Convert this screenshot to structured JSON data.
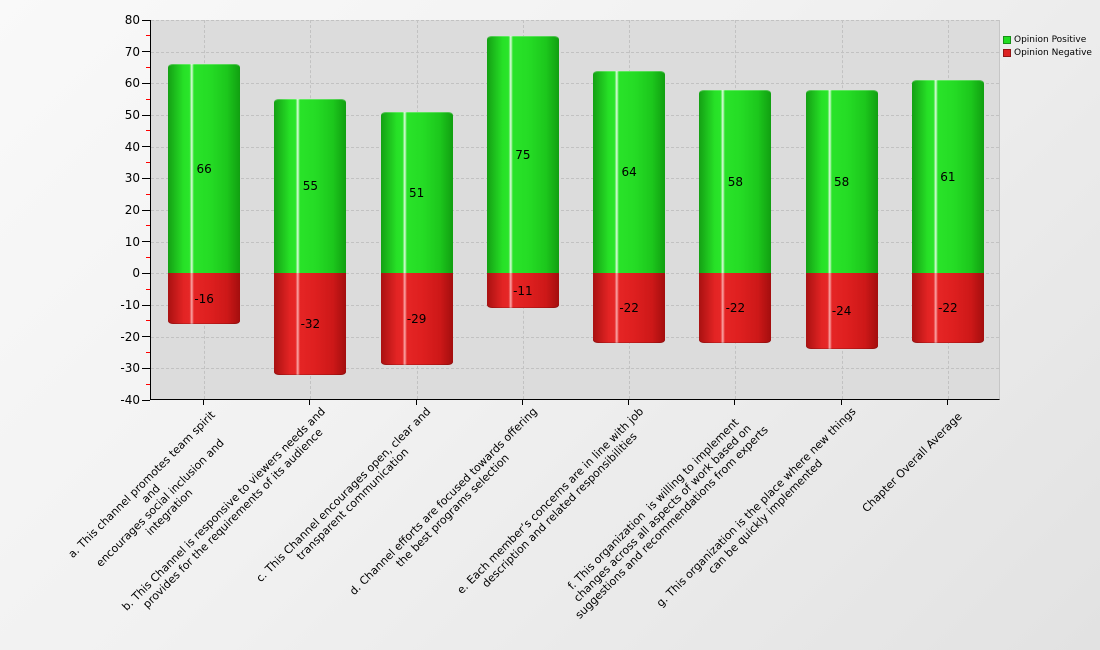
{
  "chart_data": {
    "type": "bar",
    "subtype": "diverging-stacked-columns",
    "title": "",
    "xlabel": "",
    "ylabel": "",
    "ylim": [
      -40,
      80
    ],
    "y_tick_step": 10,
    "y_minor_tick_step": 5,
    "grid": "dashed",
    "legend_position": "top-right",
    "categories": [
      "a. This channel promotes team spirit and\nencourages social inclusion and integration",
      "b. This Channel is responsive to viewers needs and\nprovides for the requirements of its audience",
      "c. This Channel encourages open, clear and\ntransparent communication",
      "d. Channel efforts are focused towards offering\nthe best programs selection",
      "e. Each member’s concerns are in line with job\ndescription and related responsibilities",
      "f. This organization  is willing to implement\nchanges across all aspects of work based on\nsuggestions and recommendations from experts",
      "g. This organization is the place where new things\ncan be quickly implemented",
      "Chapter Overall Average"
    ],
    "series": [
      {
        "name": "Opinion Positive",
        "color": "#22dd22",
        "values": [
          66,
          55,
          51,
          75,
          64,
          58,
          58,
          61
        ]
      },
      {
        "name": "Opinion Negative",
        "color": "#dd2222",
        "values": [
          -16,
          -32,
          -29,
          -11,
          -22,
          -22,
          -24,
          -22
        ]
      }
    ]
  },
  "colors": {
    "plot_background": "#dcdcdc",
    "gridline": "#c2c2c2",
    "axis": "#000000",
    "minor_tick": "#ff0000"
  }
}
